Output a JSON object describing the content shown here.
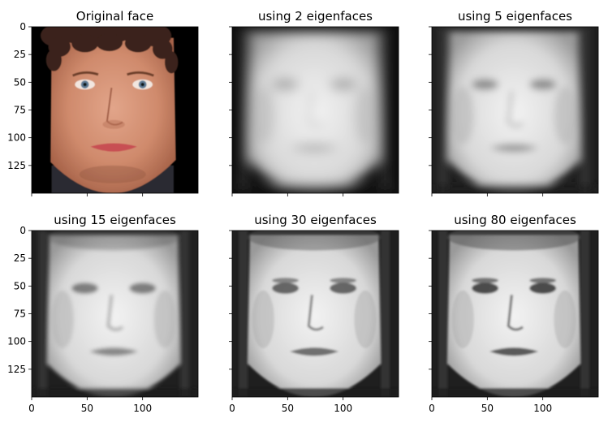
{
  "figure": {
    "background": "#ffffff",
    "axis_color": "#000000"
  },
  "chart_data": [
    {
      "type": "image",
      "title": "Original face",
      "image": "color-face-photograph",
      "xlim": [
        0,
        150
      ],
      "ylim": [
        150,
        0
      ],
      "x_ticks": [],
      "y_ticks": [
        0,
        25,
        50,
        75,
        100,
        125
      ]
    },
    {
      "type": "image",
      "title": "using 2 eigenfaces",
      "image": "grayscale-eigenface-reconstruction",
      "n_components": 2,
      "xlim": [
        0,
        150
      ],
      "ylim": [
        150,
        0
      ],
      "x_ticks": [],
      "y_ticks": []
    },
    {
      "type": "image",
      "title": "using 5 eigenfaces",
      "image": "grayscale-eigenface-reconstruction",
      "n_components": 5,
      "xlim": [
        0,
        150
      ],
      "ylim": [
        150,
        0
      ],
      "x_ticks": [],
      "y_ticks": []
    },
    {
      "type": "image",
      "title": "using 15 eigenfaces",
      "image": "grayscale-eigenface-reconstruction",
      "n_components": 15,
      "xlim": [
        0,
        150
      ],
      "ylim": [
        150,
        0
      ],
      "x_ticks": [
        0,
        50,
        100
      ],
      "y_ticks": [
        0,
        25,
        50,
        75,
        100,
        125
      ]
    },
    {
      "type": "image",
      "title": "using 30 eigenfaces",
      "image": "grayscale-eigenface-reconstruction",
      "n_components": 30,
      "xlim": [
        0,
        150
      ],
      "ylim": [
        150,
        0
      ],
      "x_ticks": [
        0,
        50,
        100
      ],
      "y_ticks": []
    },
    {
      "type": "image",
      "title": "using 80 eigenfaces",
      "image": "grayscale-eigenface-reconstruction",
      "n_components": 80,
      "xlim": [
        0,
        150
      ],
      "ylim": [
        150,
        0
      ],
      "x_ticks": [
        0,
        50,
        100
      ],
      "y_ticks": []
    }
  ]
}
